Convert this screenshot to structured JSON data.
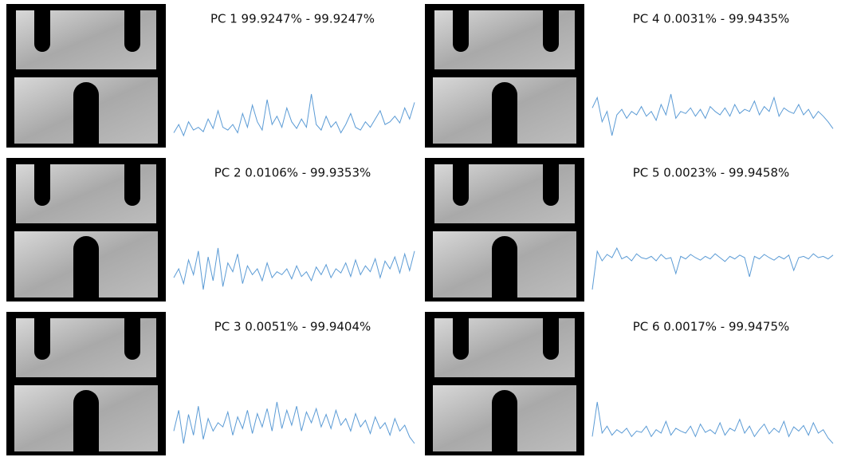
{
  "chart_data": [
    {
      "type": "line",
      "title": "PC 1 99.9247% - 99.9247%",
      "color": "#5b9bd5",
      "values": [
        20,
        35,
        15,
        40,
        25,
        30,
        22,
        45,
        28,
        60,
        30,
        25,
        35,
        20,
        55,
        30,
        70,
        40,
        25,
        80,
        35,
        50,
        30,
        65,
        40,
        28,
        45,
        30,
        90,
        35,
        25,
        50,
        30,
        40,
        20,
        35,
        55,
        30,
        25,
        40,
        30,
        45,
        60,
        35,
        40,
        50,
        38,
        65,
        45,
        75
      ]
    },
    {
      "type": "line",
      "title": "PC 2 0.0106% - 99.9353%",
      "color": "#5b9bd5",
      "values": [
        40,
        55,
        30,
        70,
        45,
        85,
        20,
        75,
        35,
        90,
        25,
        65,
        50,
        80,
        30,
        60,
        45,
        55,
        35,
        65,
        40,
        50,
        45,
        55,
        38,
        60,
        42,
        50,
        35,
        58,
        45,
        62,
        40,
        55,
        48,
        65,
        42,
        70,
        45,
        60,
        50,
        72,
        40,
        68,
        55,
        75,
        48,
        80,
        52,
        85
      ]
    },
    {
      "type": "line",
      "title": "PC 3 0.0051% - 99.9404%",
      "color": "#5b9bd5",
      "values": [
        45,
        70,
        30,
        65,
        40,
        75,
        35,
        60,
        45,
        55,
        50,
        68,
        40,
        62,
        48,
        70,
        42,
        66,
        50,
        72,
        45,
        80,
        48,
        70,
        52,
        75,
        45,
        68,
        55,
        72,
        50,
        65,
        48,
        70,
        52,
        60,
        45,
        66,
        50,
        58,
        42,
        62,
        48,
        55,
        40,
        60,
        45,
        52,
        38,
        30
      ]
    },
    {
      "type": "line",
      "title": "PC 4 0.0031% - 99.9435%",
      "color": "#5b9bd5",
      "values": [
        60,
        75,
        40,
        55,
        20,
        50,
        58,
        45,
        55,
        50,
        62,
        48,
        55,
        42,
        65,
        50,
        80,
        45,
        55,
        52,
        60,
        48,
        58,
        45,
        62,
        55,
        50,
        60,
        48,
        65,
        52,
        58,
        55,
        70,
        50,
        62,
        55,
        75,
        48,
        60,
        55,
        52,
        65,
        50,
        58,
        45,
        55,
        48,
        40,
        30
      ]
    },
    {
      "type": "line",
      "title": "PC 5 0.0023% - 99.9458%",
      "color": "#5b9bd5",
      "values": [
        10,
        70,
        55,
        65,
        60,
        75,
        58,
        62,
        55,
        66,
        60,
        58,
        62,
        55,
        65,
        58,
        60,
        35,
        62,
        58,
        65,
        60,
        56,
        62,
        58,
        66,
        60,
        54,
        62,
        58,
        64,
        60,
        30,
        62,
        58,
        65,
        60,
        56,
        62,
        58,
        64,
        40,
        60,
        62,
        58,
        66,
        60,
        62,
        58,
        64
      ]
    },
    {
      "type": "line",
      "title": "PC 6 0.0017% - 99.9475%",
      "color": "#5b9bd5",
      "values": [
        40,
        90,
        45,
        55,
        42,
        50,
        45,
        52,
        40,
        48,
        46,
        55,
        40,
        50,
        45,
        62,
        42,
        52,
        48,
        45,
        55,
        40,
        58,
        46,
        50,
        44,
        60,
        42,
        52,
        48,
        65,
        45,
        55,
        40,
        50,
        58,
        44,
        52,
        46,
        62,
        40,
        54,
        48,
        56,
        42,
        60,
        45,
        50,
        38,
        30
      ]
    }
  ]
}
